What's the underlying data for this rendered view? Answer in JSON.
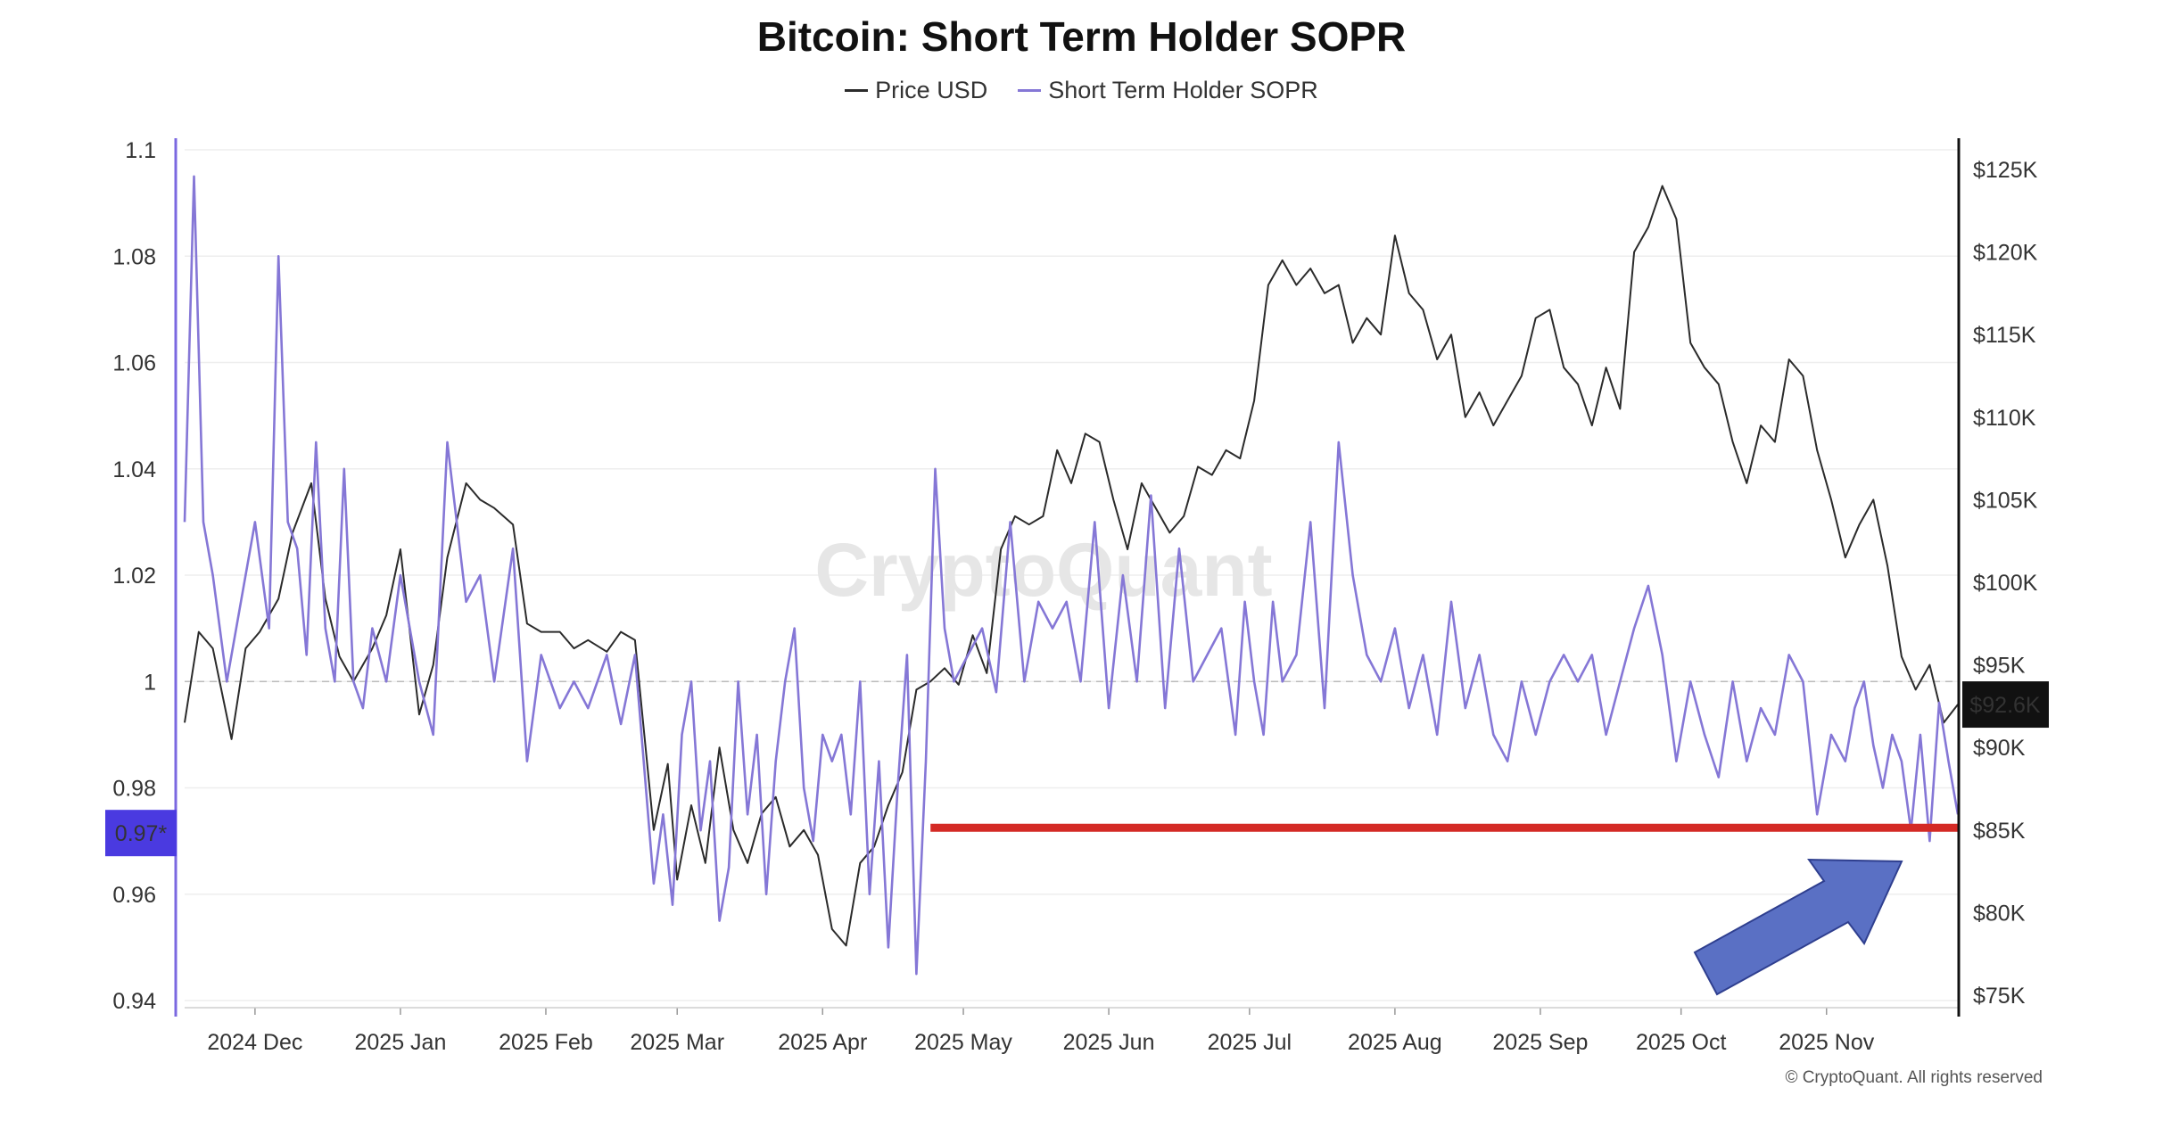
{
  "chart_data": {
    "type": "line",
    "title": "Bitcoin: Short Term Holder SOPR",
    "watermark": "CryptoQuant",
    "credit": "© CryptoQuant. All rights reserved",
    "legend": {
      "placement": "top-center"
    },
    "grid": true,
    "x_ticks": [
      "2024 Dec",
      "2025 Jan",
      "2025 Feb",
      "2025 Mar",
      "2025 Apr",
      "2025 May",
      "2025 Jun",
      "2025 Jul",
      "2025 Aug",
      "2025 Sep",
      "2025 Oct",
      "2025 Nov"
    ],
    "x_tick_days": [
      15,
      46,
      77,
      105,
      136,
      166,
      197,
      227,
      258,
      289,
      319,
      350
    ],
    "xlim": [
      0,
      378
    ],
    "y_left": {
      "label": "",
      "range": [
        0.94,
        1.1
      ],
      "ticks": [
        0.94,
        0.96,
        0.98,
        1,
        1.02,
        1.04,
        1.06,
        1.08,
        1.1
      ],
      "tick_labels": [
        "0.94",
        "0.96",
        "0.98",
        "1",
        "1.02",
        "1.04",
        "1.06",
        "1.08",
        "1.1"
      ],
      "current_value_label": "0.97*",
      "reference_line": 1
    },
    "y_right": {
      "label": "",
      "range": [
        75000,
        125000
      ],
      "ticks": [
        75000,
        80000,
        85000,
        90000,
        95000,
        100000,
        105000,
        110000,
        115000,
        120000,
        125000
      ],
      "tick_labels": [
        "$75K",
        "$80K",
        "$85K",
        "$90K",
        "$95K",
        "$100K",
        "$105K",
        "$110K",
        "$115K",
        "$120K",
        "$125K"
      ],
      "current_value_label": "$92.6K"
    },
    "annotations": {
      "support_line": {
        "sopr_value": 0.9725,
        "x_start": 159,
        "x_end": 378,
        "color": "#d42a25"
      },
      "arrow": {
        "color": "#5a70c4"
      }
    },
    "series": [
      {
        "name": "Price USD",
        "axis": "right",
        "color": "#2b2b2b",
        "x": [
          0,
          3,
          6,
          10,
          13,
          16,
          20,
          23,
          27,
          30,
          33,
          36,
          40,
          43,
          46,
          50,
          53,
          56,
          60,
          63,
          66,
          70,
          73,
          76,
          80,
          83,
          86,
          90,
          93,
          96,
          100,
          103,
          105,
          108,
          111,
          114,
          117,
          120,
          123,
          126,
          129,
          132,
          135,
          138,
          141,
          144,
          147,
          150,
          153,
          156,
          159,
          162,
          165,
          168,
          171,
          174,
          177,
          180,
          183,
          186,
          189,
          192,
          195,
          198,
          201,
          204,
          207,
          210,
          213,
          216,
          219,
          222,
          225,
          228,
          231,
          234,
          237,
          240,
          243,
          246,
          249,
          252,
          255,
          258,
          261,
          264,
          267,
          270,
          273,
          276,
          279,
          282,
          285,
          288,
          291,
          294,
          297,
          300,
          303,
          306,
          309,
          312,
          315,
          318,
          321,
          324,
          327,
          330,
          333,
          336,
          339,
          342,
          345,
          348,
          351,
          354,
          357,
          360,
          363,
          366,
          369,
          372,
          375,
          378
        ],
        "y": [
          91500,
          97000,
          96000,
          90500,
          96000,
          97000,
          99000,
          103000,
          106000,
          99000,
          95500,
          94000,
          96000,
          98000,
          102000,
          92000,
          95000,
          101500,
          106000,
          105000,
          104500,
          103500,
          97500,
          97000,
          97000,
          96000,
          96500,
          95800,
          97000,
          96500,
          85000,
          89000,
          82000,
          86500,
          83000,
          90000,
          85000,
          83000,
          86000,
          87000,
          84000,
          85000,
          83500,
          79000,
          78000,
          83000,
          84000,
          86500,
          88500,
          93500,
          94000,
          94800,
          93800,
          96800,
          94500,
          102000,
          104000,
          103500,
          104000,
          108000,
          106000,
          109000,
          108500,
          105000,
          102000,
          106000,
          104500,
          103000,
          104000,
          107000,
          106500,
          108000,
          107500,
          111000,
          118000,
          119500,
          118000,
          119000,
          117500,
          118000,
          114500,
          116000,
          115000,
          121000,
          117500,
          116500,
          113500,
          115000,
          110000,
          111500,
          109500,
          111000,
          112500,
          116000,
          116500,
          113000,
          112000,
          109500,
          113000,
          110500,
          120000,
          121500,
          124000,
          122000,
          114500,
          113000,
          112000,
          108500,
          106000,
          109500,
          108500,
          113500,
          112500,
          108000,
          105000,
          101500,
          103500,
          105000,
          101000,
          95500,
          93500,
          95000,
          91500,
          92600
        ]
      },
      {
        "name": "Short Term Holder SOPR",
        "axis": "left",
        "color": "#8577d6",
        "x": [
          0,
          2,
          4,
          6,
          9,
          12,
          15,
          18,
          20,
          22,
          24,
          26,
          28,
          30,
          32,
          34,
          36,
          38,
          40,
          43,
          46,
          50,
          53,
          56,
          60,
          63,
          66,
          70,
          73,
          76,
          80,
          83,
          86,
          90,
          93,
          96,
          100,
          102,
          104,
          106,
          108,
          110,
          112,
          114,
          116,
          118,
          120,
          122,
          124,
          126,
          128,
          130,
          132,
          134,
          136,
          138,
          140,
          142,
          144,
          146,
          148,
          150,
          152,
          154,
          156,
          158,
          160,
          162,
          164,
          167,
          170,
          173,
          176,
          179,
          182,
          185,
          188,
          191,
          194,
          197,
          200,
          203,
          206,
          209,
          212,
          215,
          218,
          221,
          224,
          226,
          228,
          230,
          232,
          234,
          237,
          240,
          243,
          246,
          249,
          252,
          255,
          258,
          261,
          264,
          267,
          270,
          273,
          276,
          279,
          282,
          285,
          288,
          291,
          294,
          297,
          300,
          303,
          306,
          309,
          312,
          315,
          318,
          321,
          324,
          327,
          330,
          333,
          336,
          339,
          342,
          345,
          348,
          351,
          354,
          356,
          358,
          360,
          362,
          364,
          366,
          368,
          370,
          372,
          374,
          376,
          378
        ],
        "y": [
          1.03,
          1.095,
          1.03,
          1.02,
          1.0,
          1.015,
          1.03,
          1.01,
          1.08,
          1.03,
          1.025,
          1.005,
          1.045,
          1.01,
          1.0,
          1.04,
          1.0,
          0.995,
          1.01,
          1.0,
          1.02,
          1.0,
          0.99,
          1.045,
          1.015,
          1.02,
          1.0,
          1.025,
          0.985,
          1.005,
          0.995,
          1.0,
          0.995,
          1.005,
          0.992,
          1.005,
          0.962,
          0.975,
          0.958,
          0.99,
          1.0,
          0.972,
          0.985,
          0.955,
          0.965,
          1.0,
          0.975,
          0.99,
          0.96,
          0.985,
          1.0,
          1.01,
          0.98,
          0.97,
          0.99,
          0.985,
          0.99,
          0.975,
          1.0,
          0.96,
          0.985,
          0.95,
          0.98,
          1.005,
          0.945,
          0.985,
          1.04,
          1.01,
          1.0,
          1.005,
          1.01,
          0.998,
          1.03,
          1.0,
          1.015,
          1.01,
          1.015,
          1.0,
          1.03,
          0.995,
          1.02,
          1.0,
          1.035,
          0.995,
          1.025,
          1.0,
          1.005,
          1.01,
          0.99,
          1.015,
          1.0,
          0.99,
          1.015,
          1.0,
          1.005,
          1.03,
          0.995,
          1.045,
          1.02,
          1.005,
          1.0,
          1.01,
          0.995,
          1.005,
          0.99,
          1.015,
          0.995,
          1.005,
          0.99,
          0.985,
          1.0,
          0.99,
          1.0,
          1.005,
          1.0,
          1.005,
          0.99,
          1.0,
          1.01,
          1.018,
          1.005,
          0.985,
          1.0,
          0.99,
          0.982,
          1.0,
          0.985,
          0.995,
          0.99,
          1.005,
          1.0,
          0.975,
          0.99,
          0.985,
          0.995,
          1.0,
          0.988,
          0.98,
          0.99,
          0.985,
          0.972,
          0.99,
          0.97,
          0.996,
          0.985,
          0.975
        ]
      }
    ]
  }
}
